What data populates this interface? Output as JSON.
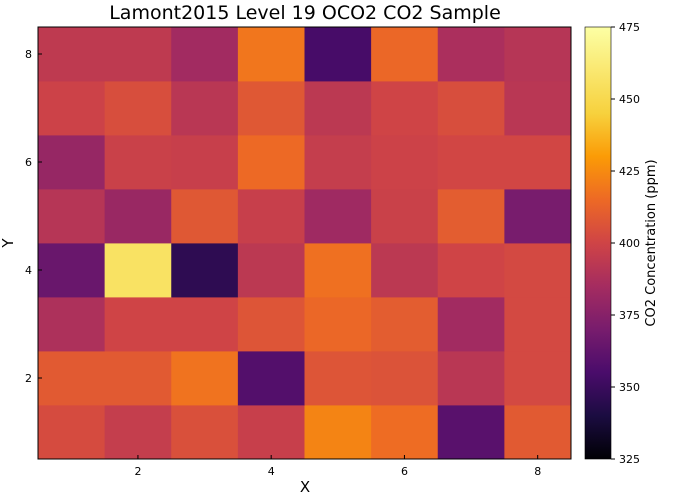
{
  "chart_data": {
    "type": "heatmap",
    "title": "Lamont2015 Level 19 OCO2 CO2 Sample",
    "xlabel": "X",
    "ylabel": "Y",
    "colorbar_label": "CO2 Concentration (ppm)",
    "x": [
      1,
      2,
      3,
      4,
      5,
      6,
      7,
      8
    ],
    "y": [
      1,
      2,
      3,
      4,
      5,
      6,
      7,
      8
    ],
    "xlim": [
      0.5,
      8.5
    ],
    "ylim": [
      0.5,
      8.5
    ],
    "x_ticks": [
      2,
      4,
      6,
      8
    ],
    "y_ticks": [
      2,
      4,
      6,
      8
    ],
    "clim": [
      325,
      475
    ],
    "colorbar_ticks": [
      325,
      350,
      375,
      400,
      425,
      450,
      475
    ],
    "colormap": "inferno",
    "values": [
      [
        403,
        396,
        405,
        397,
        423,
        416,
        360,
        409
      ],
      [
        409,
        409,
        418,
        358,
        407,
        406,
        392,
        402
      ],
      [
        388,
        400,
        400,
        407,
        414,
        410,
        384,
        402
      ],
      [
        365,
        456,
        346,
        393,
        417,
        393,
        400,
        402
      ],
      [
        391,
        381,
        408,
        397,
        383,
        398,
        410,
        370
      ],
      [
        380,
        398,
        397,
        415,
        396,
        399,
        401,
        401
      ],
      [
        399,
        404,
        392,
        408,
        393,
        400,
        404,
        392
      ],
      [
        394,
        394,
        384,
        419,
        354,
        414,
        387,
        391
      ]
    ]
  }
}
